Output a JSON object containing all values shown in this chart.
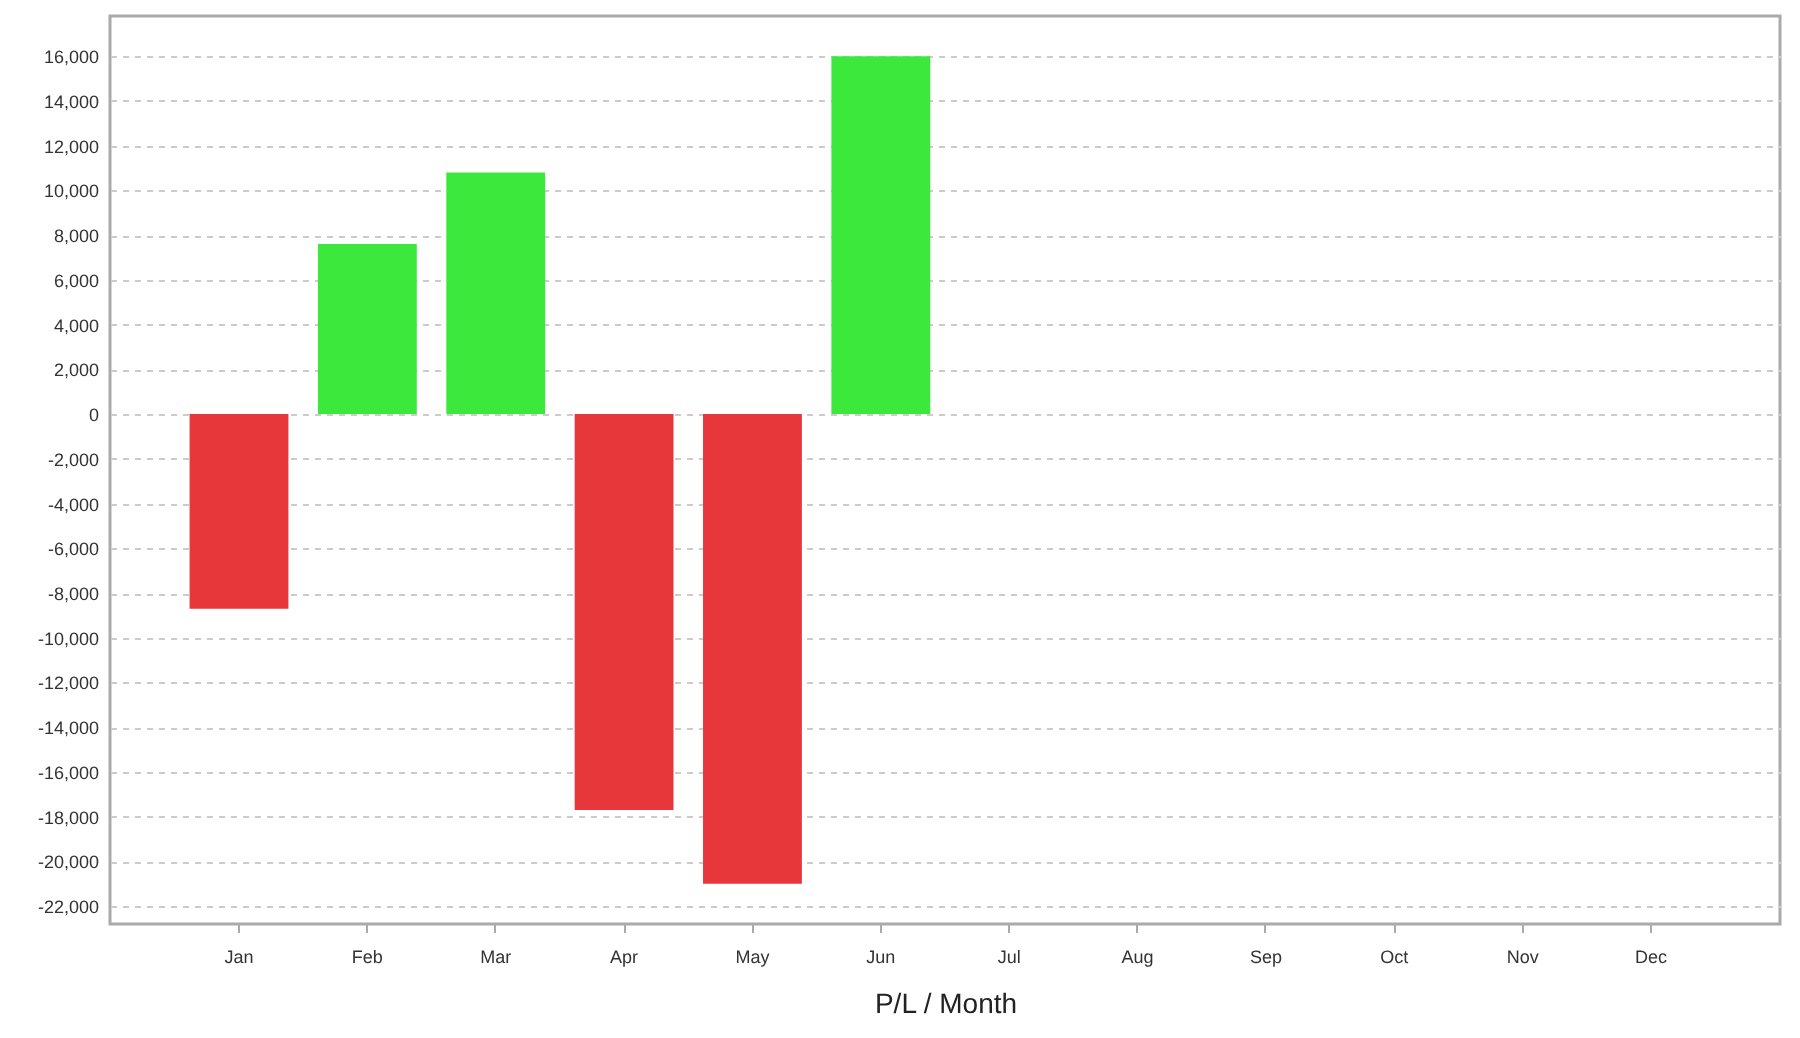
{
  "chart_data": {
    "type": "bar",
    "xlabel": "P/L / Month",
    "categories": [
      "Jan",
      "Feb",
      "Mar",
      "Apr",
      "May",
      "Jun",
      "Jul",
      "Aug",
      "Sep",
      "Oct",
      "Nov",
      "Dec"
    ],
    "values": [
      -8700,
      7600,
      10800,
      -17700,
      -21000,
      16000,
      null,
      null,
      null,
      null,
      null,
      null
    ],
    "colors": [
      "#e8373b",
      "#3de83d",
      "#3de83d",
      "#e8373b",
      "#e8373b",
      "#3de83d",
      null,
      null,
      null,
      null,
      null,
      null
    ],
    "ylim": [
      -22800,
      17800
    ],
    "yticks": [
      {
        "value": -22000,
        "label": "-22,000"
      },
      {
        "value": -20000,
        "label": "-20,000"
      },
      {
        "value": -18000,
        "label": "-18,000"
      },
      {
        "value": -16000,
        "label": "-16,000"
      },
      {
        "value": -14000,
        "label": "-14,000"
      },
      {
        "value": -12000,
        "label": "-12,000"
      },
      {
        "value": -10000,
        "label": "-10,000"
      },
      {
        "value": -8000,
        "label": "-8,000"
      },
      {
        "value": -6000,
        "label": "-6,000"
      },
      {
        "value": -4000,
        "label": "-4,000"
      },
      {
        "value": -2000,
        "label": "-2,000"
      },
      0,
      {
        "value": 2000,
        "label": "2,000"
      },
      {
        "value": 4000,
        "label": "4,000"
      },
      {
        "value": 6000,
        "label": "6,000"
      },
      {
        "value": 8000,
        "label": "8,000"
      },
      {
        "value": 10000,
        "label": "10,000"
      },
      {
        "value": 12000,
        "label": "12,000"
      },
      {
        "value": 14000,
        "label": "14,000"
      },
      {
        "value": 16000,
        "label": "16,000"
      }
    ],
    "grid": "y"
  }
}
